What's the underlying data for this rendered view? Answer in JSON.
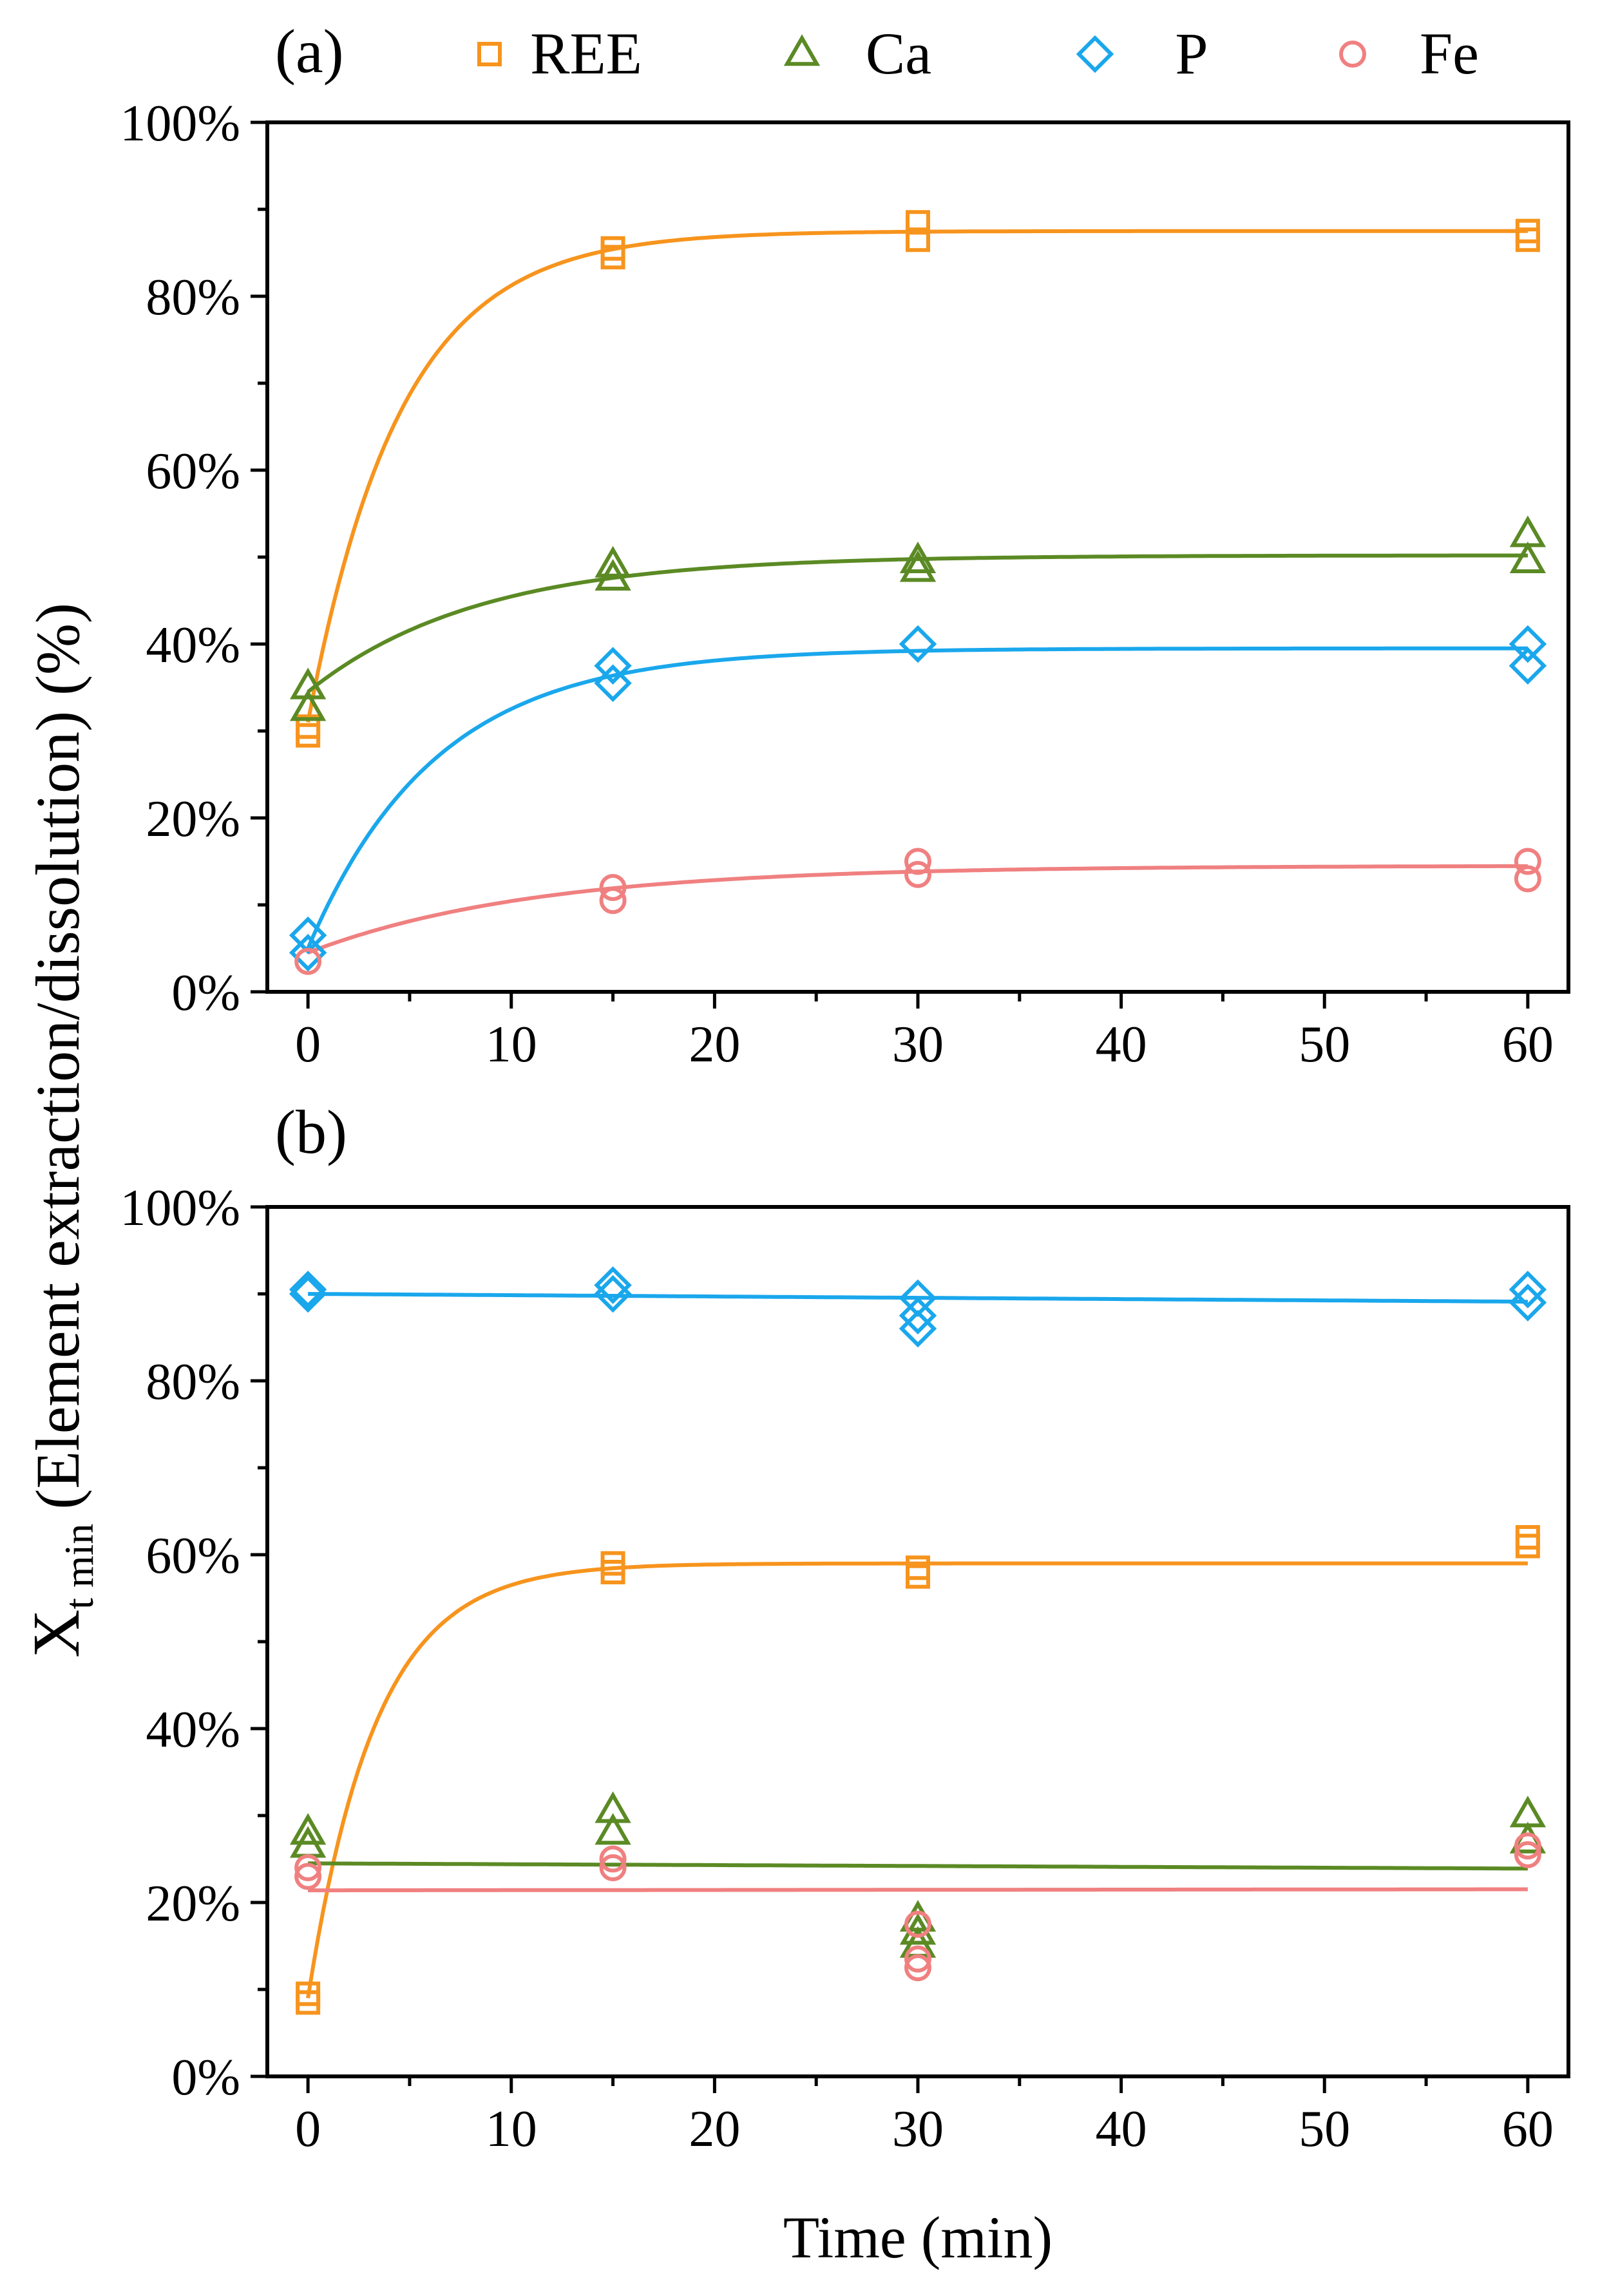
{
  "figure": {
    "ylabel_main": "X",
    "ylabel_sub": "t min",
    "ylabel_rest": "(Element extraction/dissolution) (%)",
    "xlabel": "Time (min)"
  },
  "legend": [
    {
      "key": "REE",
      "label": "REE",
      "marker": "square",
      "color": "#F7941D"
    },
    {
      "key": "Ca",
      "label": "Ca",
      "marker": "triangle",
      "color": "#5B8A24"
    },
    {
      "key": "P",
      "label": "P",
      "marker": "diamond",
      "color": "#1AA7EC"
    },
    {
      "key": "Fe",
      "label": "Fe",
      "marker": "circle",
      "color": "#F08080"
    }
  ],
  "chart_data": [
    {
      "panel_label": "(a)",
      "type": "scatter",
      "xlim": [
        -2,
        62
      ],
      "ylim": [
        0,
        100
      ],
      "xticks": [
        0,
        10,
        20,
        30,
        40,
        50,
        60
      ],
      "xtick_labels": [
        "0",
        "10",
        "20",
        "30",
        "40",
        "50",
        "60"
      ],
      "yticks": [
        0,
        20,
        40,
        60,
        80,
        100
      ],
      "ytick_labels": [
        "0%",
        "20%",
        "40%",
        "60%",
        "80%",
        "100%"
      ],
      "series": [
        {
          "name": "REE",
          "points": [
            [
              0,
              29.5
            ],
            [
              0,
              30.5
            ],
            [
              15,
              84.5
            ],
            [
              15,
              85.5
            ],
            [
              30,
              86.5
            ],
            [
              30,
              88.5
            ],
            [
              60,
              86.5
            ],
            [
              60,
              87.5
            ]
          ],
          "fit": {
            "kind": "exp",
            "y0": 31,
            "yinf": 87.5,
            "k": 0.22
          }
        },
        {
          "name": "Ca",
          "points": [
            [
              0,
              32.5
            ],
            [
              0,
              35
            ],
            [
              15,
              47.5
            ],
            [
              15,
              49
            ],
            [
              30,
              48.5
            ],
            [
              30,
              49.5
            ],
            [
              60,
              49.5
            ],
            [
              60,
              52.5
            ]
          ],
          "fit": {
            "kind": "exp",
            "y0": 34.5,
            "yinf": 50.2,
            "k": 0.12
          }
        },
        {
          "name": "P",
          "points": [
            [
              0,
              4.5
            ],
            [
              0,
              6.5
            ],
            [
              15,
              35.5
            ],
            [
              15,
              37.5
            ],
            [
              30,
              40
            ],
            [
              60,
              37.5
            ],
            [
              60,
              40
            ]
          ],
          "fit": {
            "kind": "exp",
            "y0": 5,
            "yinf": 39.5,
            "k": 0.16
          }
        },
        {
          "name": "Fe",
          "points": [
            [
              0,
              3.5
            ],
            [
              15,
              10.5
            ],
            [
              15,
              12
            ],
            [
              30,
              13.5
            ],
            [
              30,
              15
            ],
            [
              60,
              13
            ],
            [
              60,
              15
            ]
          ],
          "fit": {
            "kind": "exp",
            "y0": 4.5,
            "yinf": 14.5,
            "k": 0.09
          }
        }
      ]
    },
    {
      "panel_label": "(b)",
      "type": "scatter",
      "xlim": [
        -2,
        62
      ],
      "ylim": [
        0,
        100
      ],
      "xticks": [
        0,
        10,
        20,
        30,
        40,
        50,
        60
      ],
      "xtick_labels": [
        "0",
        "10",
        "20",
        "30",
        "40",
        "50",
        "60"
      ],
      "yticks": [
        0,
        20,
        40,
        60,
        80,
        100
      ],
      "ytick_labels": [
        "0%",
        "20%",
        "40%",
        "60%",
        "80%",
        "100%"
      ],
      "series": [
        {
          "name": "REE",
          "points": [
            [
              0,
              8.5
            ],
            [
              0,
              9.5
            ],
            [
              15,
              58
            ],
            [
              15,
              59
            ],
            [
              30,
              57.5
            ],
            [
              30,
              58.5
            ],
            [
              60,
              61
            ],
            [
              60,
              62
            ]
          ],
          "fit": {
            "kind": "exp",
            "y0": 9,
            "yinf": 59,
            "k": 0.3
          }
        },
        {
          "name": "Ca",
          "points": [
            [
              0,
              26.5
            ],
            [
              0,
              28
            ],
            [
              15,
              28
            ],
            [
              15,
              30.5
            ],
            [
              30,
              15
            ],
            [
              30,
              16.5
            ],
            [
              30,
              18
            ],
            [
              60,
              27
            ],
            [
              60,
              30
            ]
          ],
          "fit": {
            "kind": "linear",
            "a": 24.5,
            "b": -0.01
          }
        },
        {
          "name": "P",
          "points": [
            [
              0,
              90
            ],
            [
              0,
              90.5
            ],
            [
              15,
              90
            ],
            [
              15,
              91
            ],
            [
              30,
              86
            ],
            [
              30,
              87.5
            ],
            [
              30,
              89.5
            ],
            [
              60,
              89
            ],
            [
              60,
              90.5
            ]
          ],
          "fit": {
            "kind": "linear",
            "a": 90,
            "b": -0.015
          }
        },
        {
          "name": "Fe",
          "points": [
            [
              0,
              23
            ],
            [
              0,
              24
            ],
            [
              15,
              24
            ],
            [
              15,
              25
            ],
            [
              30,
              12.5
            ],
            [
              30,
              13.5
            ],
            [
              30,
              17.5
            ],
            [
              60,
              25.5
            ],
            [
              60,
              26.5
            ]
          ],
          "fit": {
            "kind": "linear",
            "a": 21.4,
            "b": 0.002
          }
        }
      ]
    }
  ]
}
